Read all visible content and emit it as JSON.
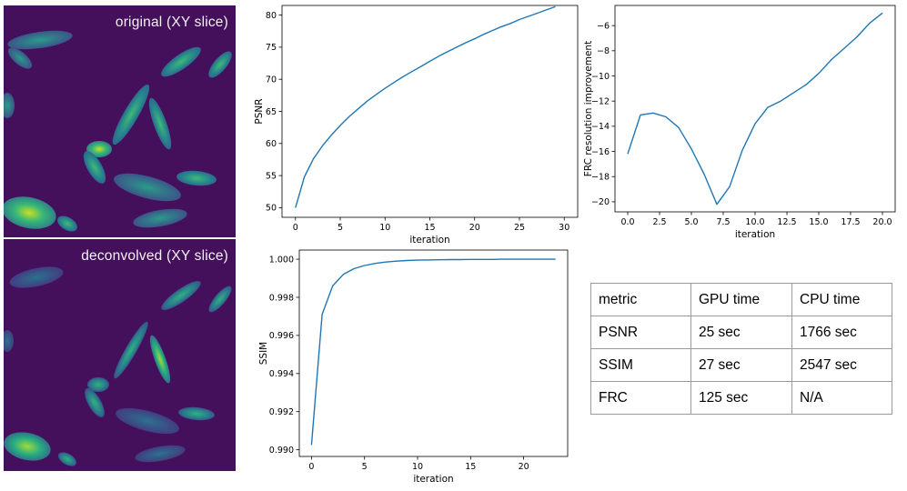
{
  "images": {
    "original_caption": "original (XY slice)",
    "deconvolved_caption": "deconvolved (XY slice)"
  },
  "colors": {
    "line": "#1f77b4",
    "viridis_bg": "#3e0f5a"
  },
  "chart_data": [
    {
      "id": "psnr",
      "type": "line",
      "xlabel": "iteration",
      "ylabel": "PSNR",
      "xlim": [
        -1.5,
        31.5
      ],
      "ylim": [
        48.5,
        81.5
      ],
      "xticks": [
        0,
        5,
        10,
        15,
        20,
        25,
        30
      ],
      "yticks": [
        50,
        55,
        60,
        65,
        70,
        75,
        80
      ],
      "xtick_labels": [
        "0",
        "5",
        "10",
        "15",
        "20",
        "25",
        "30"
      ],
      "ytick_labels": [
        "50",
        "55",
        "60",
        "65",
        "70",
        "75",
        "80"
      ],
      "series": [
        {
          "x": [
            0,
            1,
            2,
            3,
            4,
            5,
            6,
            7,
            8,
            9,
            10,
            11,
            12,
            13,
            14,
            15,
            16,
            17,
            18,
            19,
            20,
            21,
            22,
            23,
            24,
            25,
            26,
            27,
            28,
            29
          ],
          "values": [
            50.0,
            54.8,
            57.6,
            59.6,
            61.3,
            62.8,
            64.2,
            65.4,
            66.6,
            67.6,
            68.6,
            69.5,
            70.4,
            71.2,
            72.0,
            72.8,
            73.6,
            74.3,
            75.0,
            75.7,
            76.3,
            77.0,
            77.6,
            78.2,
            78.7,
            79.3,
            79.8,
            80.3,
            80.8,
            81.3
          ]
        }
      ]
    },
    {
      "id": "frc",
      "type": "line",
      "xlabel": "iteration",
      "ylabel": "FRC resolution improvement",
      "xlim": [
        -1.0,
        21.0
      ],
      "ylim": [
        -20.8,
        -4.4
      ],
      "xticks": [
        0,
        2.5,
        5,
        7.5,
        10,
        12.5,
        15,
        17.5,
        20
      ],
      "yticks": [
        -20,
        -18,
        -16,
        -14,
        -12,
        -10,
        -8,
        -6
      ],
      "xtick_labels": [
        "0.0",
        "2.5",
        "5.0",
        "7.5",
        "10.0",
        "12.5",
        "15.0",
        "17.5",
        "20.0"
      ],
      "ytick_labels": [
        "−20",
        "−18",
        "−16",
        "−14",
        "−12",
        "−10",
        "−8",
        "−6"
      ],
      "series": [
        {
          "x": [
            0,
            1,
            2,
            3,
            4,
            5,
            6,
            7,
            8,
            9,
            10,
            11,
            12,
            13,
            14,
            15,
            16,
            17,
            18,
            19,
            20
          ],
          "values": [
            -16.2,
            -13.1,
            -12.95,
            -13.25,
            -14.1,
            -15.8,
            -17.8,
            -20.2,
            -18.8,
            -15.9,
            -13.8,
            -12.5,
            -12.0,
            -11.35,
            -10.7,
            -9.8,
            -8.7,
            -7.8,
            -6.9,
            -5.8,
            -5.0
          ]
        }
      ]
    },
    {
      "id": "ssim",
      "type": "line",
      "xlabel": "iteration",
      "ylabel": "SSIM",
      "xlim": [
        -1.15,
        24.15
      ],
      "ylim": [
        0.98965,
        1.00048
      ],
      "xticks": [
        0,
        5,
        10,
        15,
        20
      ],
      "yticks": [
        0.99,
        0.992,
        0.994,
        0.996,
        0.998,
        1.0
      ],
      "xtick_labels": [
        "0",
        "5",
        "10",
        "15",
        "20"
      ],
      "ytick_labels": [
        "0.990",
        "0.992",
        "0.994",
        "0.996",
        "0.998",
        "1.000"
      ],
      "series": [
        {
          "x": [
            0,
            1,
            2,
            3,
            4,
            5,
            6,
            7,
            8,
            9,
            10,
            11,
            12,
            13,
            14,
            15,
            16,
            17,
            18,
            19,
            20,
            21,
            22,
            23
          ],
          "values": [
            0.99025,
            0.9971,
            0.9986,
            0.9992,
            0.9995,
            0.99967,
            0.99978,
            0.99985,
            0.9999,
            0.99993,
            0.99995,
            0.99996,
            0.99997,
            0.99998,
            0.99998,
            0.99999,
            0.99999,
            0.99999,
            1.0,
            1.0,
            1.0,
            1.0,
            1.0,
            1.0
          ]
        }
      ]
    }
  ],
  "table": {
    "header": [
      "metric",
      "GPU time",
      "CPU time"
    ],
    "rows": [
      [
        "PSNR",
        "25 sec",
        "1766 sec"
      ],
      [
        "SSIM",
        "27 sec",
        "2547 sec"
      ],
      [
        "FRC",
        "125 sec",
        "N/A"
      ]
    ]
  }
}
